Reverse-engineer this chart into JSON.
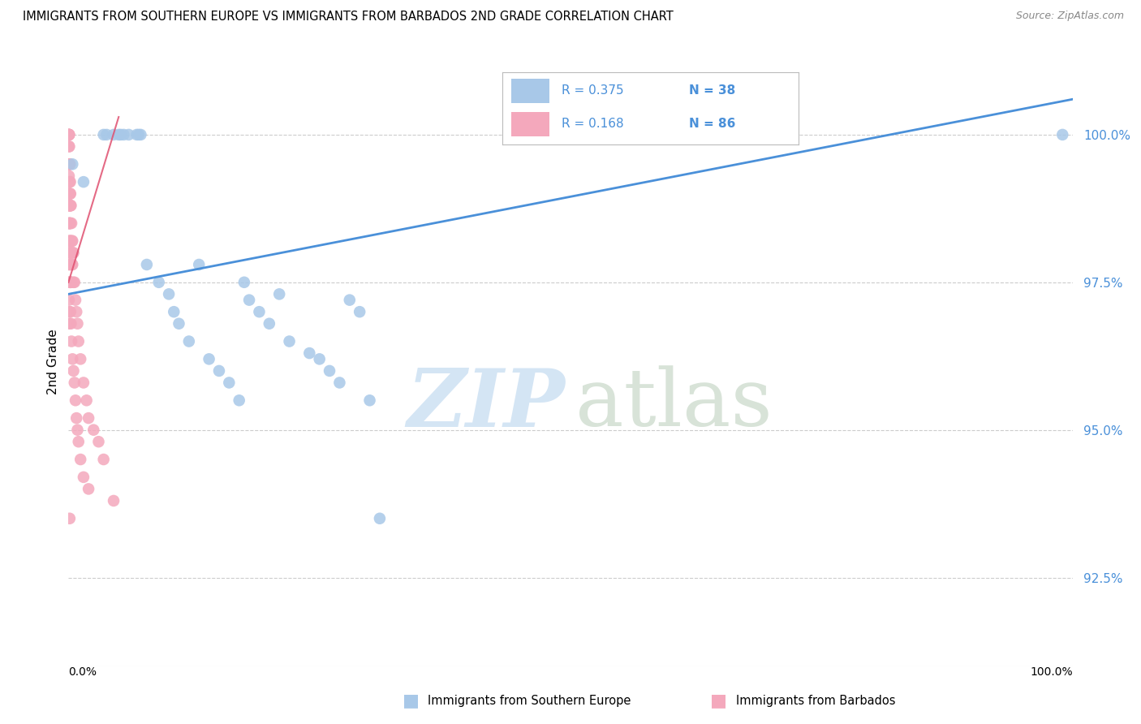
{
  "title": "IMMIGRANTS FROM SOUTHERN EUROPE VS IMMIGRANTS FROM BARBADOS 2ND GRADE CORRELATION CHART",
  "source": "Source: ZipAtlas.com",
  "ylabel": "2nd Grade",
  "ytick_values": [
    92.5,
    95.0,
    97.5,
    100.0
  ],
  "xlim": [
    0.0,
    100.0
  ],
  "ylim": [
    91.0,
    101.3
  ],
  "legend_blue_label": "Immigrants from Southern Europe",
  "legend_pink_label": "Immigrants from Barbados",
  "R_blue": 0.375,
  "N_blue": 38,
  "R_pink": 0.168,
  "N_pink": 86,
  "blue_color": "#a8c8e8",
  "pink_color": "#f4a8bc",
  "blue_line_color": "#4a90d9",
  "pink_line_color": "#e05070",
  "blue_trendline_x": [
    0.0,
    100.0
  ],
  "blue_trendline_y": [
    97.3,
    100.6
  ],
  "pink_trendline_x": [
    0.0,
    5.0
  ],
  "pink_trendline_y": [
    97.5,
    100.3
  ],
  "watermark_zip": "ZIP",
  "watermark_atlas": "atlas",
  "background_color": "#ffffff",
  "grid_color": "#cccccc",
  "blue_scatter_x": [
    0.4,
    1.5,
    3.5,
    3.8,
    4.5,
    5.0,
    5.2,
    5.5,
    6.0,
    6.8,
    7.0,
    7.2,
    7.8,
    9.0,
    10.0,
    10.5,
    11.0,
    12.0,
    13.0,
    14.0,
    15.0,
    16.0,
    17.0,
    17.5,
    18.0,
    19.0,
    20.0,
    21.0,
    22.0,
    24.0,
    25.0,
    26.0,
    27.0,
    28.0,
    29.0,
    30.0,
    31.0,
    99.0
  ],
  "blue_scatter_y": [
    99.5,
    99.2,
    100.0,
    100.0,
    100.0,
    100.0,
    100.0,
    100.0,
    100.0,
    100.0,
    100.0,
    100.0,
    97.8,
    97.5,
    97.3,
    97.0,
    96.8,
    96.5,
    97.8,
    96.2,
    96.0,
    95.8,
    95.5,
    97.5,
    97.2,
    97.0,
    96.8,
    97.3,
    96.5,
    96.3,
    96.2,
    96.0,
    95.8,
    97.2,
    97.0,
    95.5,
    93.5,
    100.0
  ],
  "pink_scatter_x": [
    0.05,
    0.05,
    0.05,
    0.05,
    0.05,
    0.05,
    0.05,
    0.05,
    0.05,
    0.05,
    0.08,
    0.08,
    0.08,
    0.08,
    0.08,
    0.08,
    0.08,
    0.08,
    0.1,
    0.1,
    0.1,
    0.1,
    0.1,
    0.1,
    0.12,
    0.12,
    0.12,
    0.12,
    0.15,
    0.15,
    0.15,
    0.15,
    0.15,
    0.15,
    0.18,
    0.18,
    0.18,
    0.2,
    0.2,
    0.2,
    0.2,
    0.2,
    0.25,
    0.25,
    0.25,
    0.3,
    0.3,
    0.3,
    0.35,
    0.35,
    0.4,
    0.4,
    0.45,
    0.5,
    0.5,
    0.6,
    0.7,
    0.8,
    0.9,
    1.0,
    1.2,
    1.5,
    1.8,
    2.0,
    2.5,
    3.0,
    3.5,
    4.5,
    0.15,
    0.2,
    0.25,
    0.3,
    0.4,
    0.5,
    0.6,
    0.7,
    0.8,
    0.9,
    1.0,
    1.2,
    1.5,
    2.0,
    0.05,
    0.08,
    0.1,
    0.12
  ],
  "pink_scatter_y": [
    100.0,
    100.0,
    100.0,
    100.0,
    99.8,
    99.5,
    99.3,
    99.0,
    98.8,
    98.5,
    100.0,
    99.8,
    99.5,
    99.0,
    98.8,
    98.5,
    98.2,
    97.8,
    99.5,
    99.2,
    98.8,
    98.5,
    98.2,
    97.8,
    99.0,
    98.5,
    98.0,
    97.5,
    99.5,
    99.0,
    98.8,
    98.5,
    98.0,
    97.5,
    99.2,
    98.8,
    98.2,
    99.0,
    98.8,
    98.5,
    98.0,
    97.5,
    98.8,
    98.2,
    97.8,
    98.5,
    98.0,
    97.5,
    98.2,
    97.8,
    98.2,
    97.8,
    98.0,
    98.0,
    97.5,
    97.5,
    97.2,
    97.0,
    96.8,
    96.5,
    96.2,
    95.8,
    95.5,
    95.2,
    95.0,
    94.8,
    94.5,
    93.8,
    97.5,
    97.0,
    96.8,
    96.5,
    96.2,
    96.0,
    95.8,
    95.5,
    95.2,
    95.0,
    94.8,
    94.5,
    94.2,
    94.0,
    97.2,
    97.0,
    96.8,
    93.5
  ]
}
